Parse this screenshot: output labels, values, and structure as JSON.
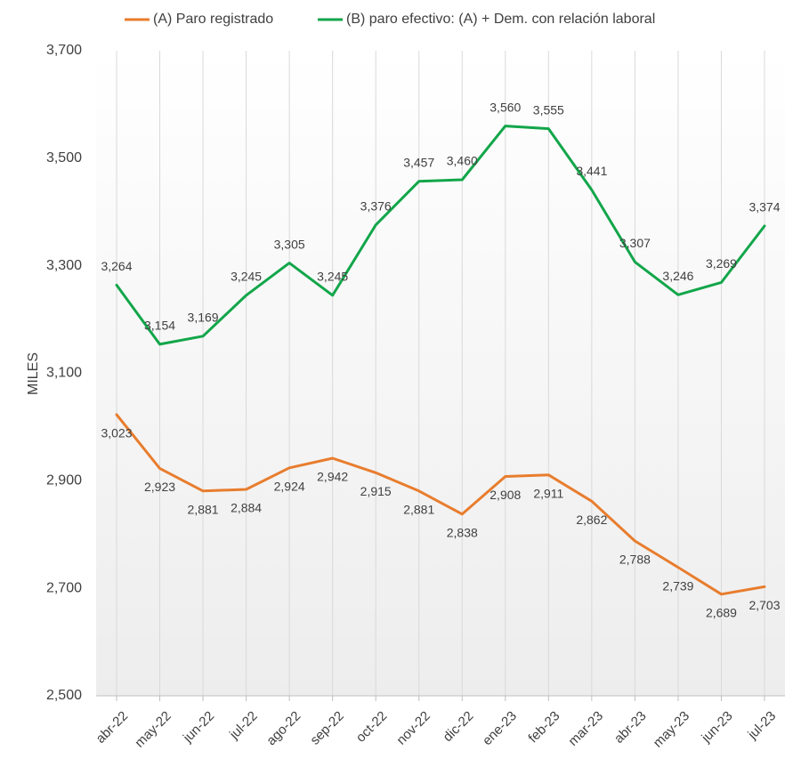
{
  "chart_data": {
    "type": "line",
    "title": "",
    "xlabel": "",
    "ylabel": "MILES",
    "ylim": [
      2500,
      3700
    ],
    "yticks": [
      2500,
      2700,
      2900,
      3100,
      3300,
      3500,
      3700
    ],
    "ytick_labels": [
      "2,500",
      "2,700",
      "2,900",
      "3,100",
      "3,300",
      "3,500",
      "3,700"
    ],
    "grid": "vertical",
    "legend_position": "top",
    "categories": [
      "abr-22",
      "may-22",
      "jun-22",
      "jul-22",
      "ago-22",
      "sep-22",
      "oct-22",
      "nov-22",
      "dic-22",
      "ene-23",
      "feb-23",
      "mar-23",
      "abr-23",
      "may-23",
      "jun-23",
      "jul-23"
    ],
    "series": [
      {
        "name": "(A) Paro registrado",
        "color": "#E87D2E",
        "label_position": "below",
        "values": [
          3023,
          2923,
          2881,
          2884,
          2924,
          2942,
          2915,
          2881,
          2838,
          2908,
          2911,
          2862,
          2788,
          2739,
          2689,
          2703
        ],
        "labels": [
          "3,023",
          "2,923",
          "2,881",
          "2,884",
          "2,924",
          "2,942",
          "2,915",
          "2,881",
          "2,838",
          "2,908",
          "2,911",
          "2,862",
          "2,788",
          "2,739",
          "2,689",
          "2,703"
        ]
      },
      {
        "name": "(B) paro efectivo: (A) + Dem. con relación laboral",
        "color": "#12A64A",
        "label_position": "above",
        "values": [
          3264,
          3154,
          3169,
          3245,
          3305,
          3245,
          3376,
          3457,
          3460,
          3560,
          3555,
          3441,
          3307,
          3246,
          3269,
          3374
        ],
        "labels": [
          "3,264",
          "3,154",
          "3,169",
          "3,245",
          "3,305",
          "3,245",
          "3,376",
          "3,457",
          "3,460",
          "3,560",
          "3,555",
          "3,441",
          "3,307",
          "3,246",
          "3,269",
          "3,374"
        ]
      }
    ]
  }
}
